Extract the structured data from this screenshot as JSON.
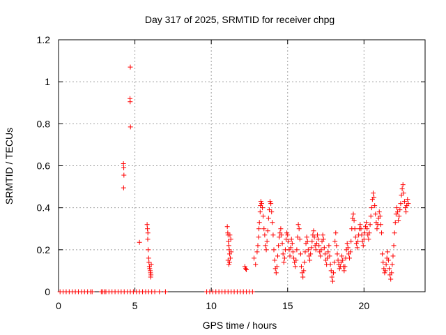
{
  "chart_data": {
    "type": "scatter",
    "title": "Day 317 of 2025, SRMTID for receiver chpg",
    "xlabel": "GPS time / hours",
    "ylabel": "SRMTID / TECUs",
    "xlim": [
      0,
      24
    ],
    "ylim": [
      0,
      1.2
    ],
    "xticks": [
      0,
      5,
      10,
      15,
      20
    ],
    "yticks": [
      0,
      0.2,
      0.4,
      0.6,
      0.8,
      1,
      1.2
    ],
    "xtick_labels": [
      "0",
      "5",
      "10",
      "15",
      "20"
    ],
    "ytick_labels": [
      "0",
      "0.2",
      "0.4",
      "0.6",
      "0.8",
      "1",
      "1.2"
    ],
    "grid": true,
    "marker": "+",
    "series": [
      {
        "name": "SRMTID",
        "color": "#ff0000",
        "points": [
          [
            0.1,
            0
          ],
          [
            0.3,
            0
          ],
          [
            0.5,
            0
          ],
          [
            0.7,
            0
          ],
          [
            0.9,
            0
          ],
          [
            1.1,
            0
          ],
          [
            1.3,
            0
          ],
          [
            1.5,
            0
          ],
          [
            1.7,
            0
          ],
          [
            1.9,
            0
          ],
          [
            2.1,
            0
          ],
          [
            2.2,
            0
          ],
          [
            2.8,
            0
          ],
          [
            2.9,
            0
          ],
          [
            3.0,
            0
          ],
          [
            3.1,
            0
          ],
          [
            3.3,
            0
          ],
          [
            3.5,
            0
          ],
          [
            3.7,
            0
          ],
          [
            3.9,
            0
          ],
          [
            4.1,
            0
          ],
          [
            4.3,
            0
          ],
          [
            4.5,
            0
          ],
          [
            4.7,
            0
          ],
          [
            4.9,
            0
          ],
          [
            5.1,
            0
          ],
          [
            5.3,
            0
          ],
          [
            5.5,
            0
          ],
          [
            5.7,
            0
          ],
          [
            5.9,
            0
          ],
          [
            6.1,
            0
          ],
          [
            6.3,
            0
          ],
          [
            6.6,
            0
          ],
          [
            7.0,
            0
          ],
          [
            4.25,
            0.61
          ],
          [
            4.27,
            0.59
          ],
          [
            4.28,
            0.555
          ],
          [
            4.26,
            0.495
          ],
          [
            4.7,
            1.07
          ],
          [
            4.68,
            0.92
          ],
          [
            4.69,
            0.905
          ],
          [
            4.71,
            0.785
          ],
          [
            5.3,
            0.235
          ],
          [
            5.8,
            0.32
          ],
          [
            5.82,
            0.3
          ],
          [
            5.85,
            0.28
          ],
          [
            5.84,
            0.25
          ],
          [
            5.87,
            0.2
          ],
          [
            5.9,
            0.16
          ],
          [
            5.92,
            0.14
          ],
          [
            5.95,
            0.12
          ],
          [
            5.97,
            0.11
          ],
          [
            6.0,
            0.1
          ],
          [
            6.02,
            0.09
          ],
          [
            6.05,
            0.08
          ],
          [
            6.07,
            0.13
          ],
          [
            6.03,
            0.07
          ],
          [
            9.7,
            0
          ],
          [
            9.9,
            0
          ],
          [
            10.1,
            0
          ],
          [
            10.3,
            0
          ],
          [
            10.5,
            0
          ],
          [
            10.7,
            0
          ],
          [
            10.9,
            0
          ],
          [
            11.1,
            0
          ],
          [
            11.3,
            0
          ],
          [
            11.5,
            0
          ],
          [
            11.7,
            0
          ],
          [
            11.9,
            0
          ],
          [
            12.1,
            0
          ],
          [
            12.3,
            0
          ],
          [
            12.5,
            0
          ],
          [
            12.7,
            0
          ],
          [
            11.05,
            0.31
          ],
          [
            11.08,
            0.28
          ],
          [
            11.1,
            0.27
          ],
          [
            11.12,
            0.24
          ],
          [
            11.15,
            0.22
          ],
          [
            11.18,
            0.2
          ],
          [
            11.2,
            0.18
          ],
          [
            11.1,
            0.15
          ],
          [
            11.15,
            0.13
          ],
          [
            11.2,
            0.14
          ],
          [
            11.25,
            0.16
          ],
          [
            11.3,
            0.19
          ],
          [
            11.28,
            0.25
          ],
          [
            11.22,
            0.27
          ],
          [
            12.2,
            0.12
          ],
          [
            12.25,
            0.11
          ],
          [
            12.3,
            0.105
          ],
          [
            12.8,
            0.16
          ],
          [
            12.9,
            0.13
          ],
          [
            13.0,
            0.19
          ],
          [
            13.05,
            0.22
          ],
          [
            13.1,
            0.26
          ],
          [
            13.12,
            0.3
          ],
          [
            13.15,
            0.33
          ],
          [
            13.2,
            0.38
          ],
          [
            13.22,
            0.41
          ],
          [
            13.25,
            0.43
          ],
          [
            13.3,
            0.42
          ],
          [
            13.35,
            0.4
          ],
          [
            13.4,
            0.36
          ],
          [
            13.45,
            0.3
          ],
          [
            13.5,
            0.27
          ],
          [
            13.55,
            0.22
          ],
          [
            13.6,
            0.2
          ],
          [
            13.65,
            0.24
          ],
          [
            13.7,
            0.29
          ],
          [
            13.75,
            0.35
          ],
          [
            13.8,
            0.39
          ],
          [
            13.85,
            0.43
          ],
          [
            13.9,
            0.42
          ],
          [
            13.95,
            0.38
          ],
          [
            14.0,
            0.33
          ],
          [
            14.05,
            0.27
          ],
          [
            14.1,
            0.2
          ],
          [
            14.15,
            0.15
          ],
          [
            14.2,
            0.11
          ],
          [
            14.25,
            0.09
          ],
          [
            14.3,
            0.12
          ],
          [
            14.35,
            0.17
          ],
          [
            14.4,
            0.22
          ],
          [
            14.45,
            0.26
          ],
          [
            14.5,
            0.28
          ],
          [
            14.55,
            0.3
          ],
          [
            14.6,
            0.27
          ],
          [
            14.65,
            0.23
          ],
          [
            14.7,
            0.18
          ],
          [
            14.75,
            0.14
          ],
          [
            14.8,
            0.16
          ],
          [
            14.85,
            0.2
          ],
          [
            14.9,
            0.25
          ],
          [
            14.95,
            0.28
          ],
          [
            15.0,
            0.27
          ],
          [
            15.05,
            0.24
          ],
          [
            15.1,
            0.2
          ],
          [
            15.15,
            0.17
          ],
          [
            15.2,
            0.21
          ],
          [
            15.25,
            0.25
          ],
          [
            15.3,
            0.23
          ],
          [
            15.35,
            0.19
          ],
          [
            15.4,
            0.16
          ],
          [
            15.45,
            0.14
          ],
          [
            15.5,
            0.12
          ],
          [
            15.55,
            0.15
          ],
          [
            15.6,
            0.2
          ],
          [
            15.65,
            0.26
          ],
          [
            15.7,
            0.32
          ],
          [
            15.75,
            0.3
          ],
          [
            15.8,
            0.25
          ],
          [
            15.85,
            0.18
          ],
          [
            15.9,
            0.12
          ],
          [
            15.95,
            0.09
          ],
          [
            16.0,
            0.07
          ],
          [
            16.05,
            0.1
          ],
          [
            16.1,
            0.14
          ],
          [
            16.15,
            0.19
          ],
          [
            16.2,
            0.23
          ],
          [
            16.25,
            0.26
          ],
          [
            16.3,
            0.24
          ],
          [
            16.35,
            0.2
          ],
          [
            16.4,
            0.17
          ],
          [
            16.45,
            0.15
          ],
          [
            16.5,
            0.18
          ],
          [
            16.55,
            0.21
          ],
          [
            16.6,
            0.24
          ],
          [
            16.65,
            0.27
          ],
          [
            16.7,
            0.29
          ],
          [
            16.75,
            0.26
          ],
          [
            16.8,
            0.22
          ],
          [
            16.85,
            0.2
          ],
          [
            16.9,
            0.23
          ],
          [
            16.95,
            0.27
          ],
          [
            17.0,
            0.25
          ],
          [
            17.05,
            0.22
          ],
          [
            17.1,
            0.19
          ],
          [
            17.15,
            0.17
          ],
          [
            17.2,
            0.2
          ],
          [
            17.25,
            0.24
          ],
          [
            17.3,
            0.27
          ],
          [
            17.35,
            0.25
          ],
          [
            17.4,
            0.21
          ],
          [
            17.45,
            0.18
          ],
          [
            17.5,
            0.15
          ],
          [
            17.55,
            0.13
          ],
          [
            17.6,
            0.16
          ],
          [
            17.65,
            0.19
          ],
          [
            17.7,
            0.22
          ],
          [
            17.75,
            0.17
          ],
          [
            17.8,
            0.13
          ],
          [
            17.85,
            0.1
          ],
          [
            17.9,
            0.07
          ],
          [
            17.95,
            0.05
          ],
          [
            18.0,
            0.09
          ],
          [
            18.05,
            0.14
          ],
          [
            18.1,
            0.24
          ],
          [
            18.15,
            0.28
          ],
          [
            18.2,
            0.22
          ],
          [
            18.25,
            0.18
          ],
          [
            18.3,
            0.15
          ],
          [
            18.35,
            0.13
          ],
          [
            18.4,
            0.11
          ],
          [
            18.45,
            0.12
          ],
          [
            18.5,
            0.14
          ],
          [
            18.55,
            0.17
          ],
          [
            18.6,
            0.15
          ],
          [
            18.65,
            0.12
          ],
          [
            18.7,
            0.1
          ],
          [
            18.75,
            0.12
          ],
          [
            18.8,
            0.16
          ],
          [
            18.85,
            0.2
          ],
          [
            18.9,
            0.23
          ],
          [
            18.95,
            0.21
          ],
          [
            19.0,
            0.18
          ],
          [
            19.05,
            0.16
          ],
          [
            19.1,
            0.19
          ],
          [
            19.15,
            0.24
          ],
          [
            19.2,
            0.3
          ],
          [
            19.25,
            0.35
          ],
          [
            19.3,
            0.37
          ],
          [
            19.35,
            0.34
          ],
          [
            19.4,
            0.3
          ],
          [
            19.45,
            0.26
          ],
          [
            19.5,
            0.23
          ],
          [
            19.55,
            0.21
          ],
          [
            19.6,
            0.24
          ],
          [
            19.65,
            0.27
          ],
          [
            19.7,
            0.3
          ],
          [
            19.75,
            0.32
          ],
          [
            19.8,
            0.3
          ],
          [
            19.85,
            0.27
          ],
          [
            19.9,
            0.24
          ],
          [
            19.95,
            0.22
          ],
          [
            20.0,
            0.25
          ],
          [
            20.05,
            0.28
          ],
          [
            20.1,
            0.31
          ],
          [
            20.15,
            0.33
          ],
          [
            20.2,
            0.3
          ],
          [
            20.25,
            0.27
          ],
          [
            20.3,
            0.25
          ],
          [
            20.35,
            0.28
          ],
          [
            20.4,
            0.32
          ],
          [
            20.45,
            0.36
          ],
          [
            20.5,
            0.4
          ],
          [
            20.55,
            0.44
          ],
          [
            20.6,
            0.47
          ],
          [
            20.65,
            0.45
          ],
          [
            20.7,
            0.41
          ],
          [
            20.75,
            0.37
          ],
          [
            20.8,
            0.33
          ],
          [
            20.85,
            0.3
          ],
          [
            20.9,
            0.32
          ],
          [
            20.95,
            0.35
          ],
          [
            21.0,
            0.38
          ],
          [
            21.05,
            0.36
          ],
          [
            21.1,
            0.32
          ],
          [
            21.15,
            0.28
          ],
          [
            21.2,
            0.18
          ],
          [
            21.25,
            0.14
          ],
          [
            21.3,
            0.11
          ],
          [
            21.35,
            0.09
          ],
          [
            21.4,
            0.1
          ],
          [
            21.45,
            0.13
          ],
          [
            21.5,
            0.16
          ],
          [
            21.55,
            0.19
          ],
          [
            21.6,
            0.15
          ],
          [
            21.65,
            0.11
          ],
          [
            21.7,
            0.08
          ],
          [
            21.75,
            0.06
          ],
          [
            21.8,
            0.09
          ],
          [
            21.85,
            0.13
          ],
          [
            21.9,
            0.17
          ],
          [
            21.95,
            0.22
          ],
          [
            22.0,
            0.28
          ],
          [
            22.05,
            0.33
          ],
          [
            22.1,
            0.37
          ],
          [
            22.15,
            0.4
          ],
          [
            22.2,
            0.38
          ],
          [
            22.25,
            0.34
          ],
          [
            22.3,
            0.36
          ],
          [
            22.35,
            0.39
          ],
          [
            22.4,
            0.42
          ],
          [
            22.45,
            0.46
          ],
          [
            22.5,
            0.49
          ],
          [
            22.55,
            0.51
          ],
          [
            22.6,
            0.47
          ],
          [
            22.65,
            0.43
          ],
          [
            22.7,
            0.4
          ],
          [
            22.75,
            0.38
          ],
          [
            22.8,
            0.41
          ],
          [
            22.85,
            0.44
          ],
          [
            22.9,
            0.42
          ]
        ]
      }
    ]
  }
}
